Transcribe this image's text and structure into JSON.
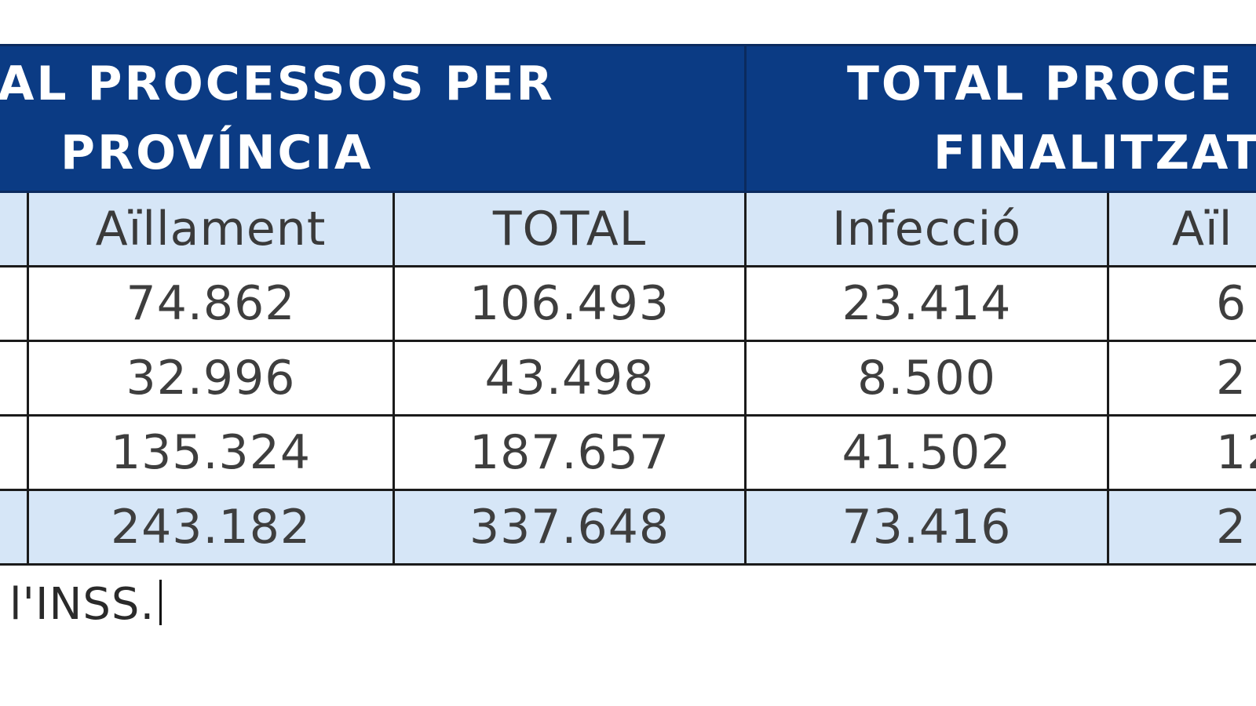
{
  "groups": [
    {
      "title_line1": "AL PROCESSOS PER",
      "title_line2": "PROVÍNCIA"
    },
    {
      "title_line1": "TOTAL PROCE",
      "title_line2": "FINALITZAT"
    }
  ],
  "columns": [
    "",
    "Aïllament",
    "TOTAL",
    "Infecció",
    "Aïl"
  ],
  "rows": [
    {
      "cells": [
        "",
        "74.862",
        "106.493",
        "23.414",
        "6"
      ]
    },
    {
      "cells": [
        "",
        "32.996",
        "43.498",
        "8.500",
        "2"
      ]
    },
    {
      "cells": [
        "",
        "135.324",
        "187.657",
        "41.502",
        "12"
      ]
    },
    {
      "cells": [
        "",
        "243.182",
        "337.648",
        "73.416",
        "2"
      ]
    }
  ],
  "footer_note": "l'INSS."
}
